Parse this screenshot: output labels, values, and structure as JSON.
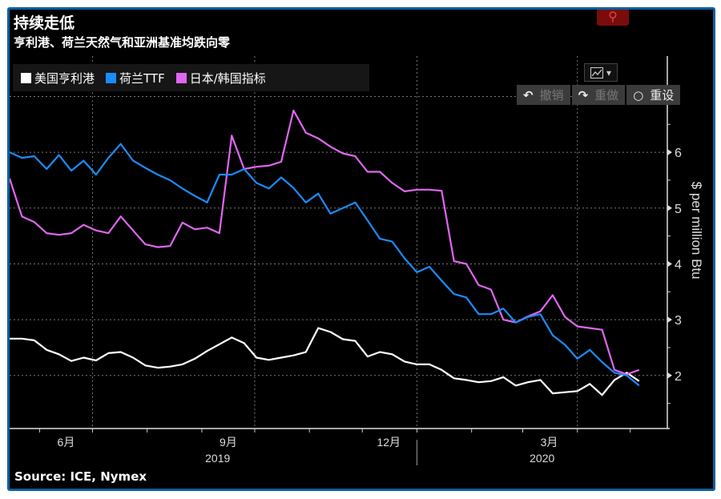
{
  "header": {
    "title": "持续走低",
    "subtitle": "亨利港、荷兰天然气和亚洲基准均跌向零"
  },
  "toolbar": {
    "undo_label": "撤销",
    "redo_label": "重做",
    "reset_label": "重设",
    "chart_type_icon": "line-chart-icon",
    "search_icon": "magnifier-icon"
  },
  "footer": {
    "source": "Source: ICE, Nymex"
  },
  "chart_data": {
    "type": "line",
    "title": "持续走低",
    "subtitle": "亨利港、荷兰天然气和亚洲基准均跌向零",
    "ylabel": "$ per million Btu",
    "xlabel": "",
    "ylim": [
      1.05,
      7.15
    ],
    "xlim": [
      "2019-05-15",
      "2020-05-22"
    ],
    "grid": true,
    "legend_position": "top-left",
    "y_axis_side": "right",
    "yticks": [
      "2",
      "3",
      "4",
      "5",
      "6"
    ],
    "ytick_values": [
      2,
      3,
      4,
      5,
      6
    ],
    "xtick_labels": [
      {
        "label": "6月",
        "date": "2019-06-16"
      },
      {
        "label": "9月",
        "date": "2019-09-16"
      },
      {
        "label": "12月",
        "date": "2019-12-16"
      },
      {
        "label": "3月",
        "date": "2020-03-16"
      }
    ],
    "year_labels": [
      {
        "label": "2019",
        "date": "2019-09-10"
      },
      {
        "label": "2020",
        "date": "2020-03-12"
      }
    ],
    "x": [
      "2019-05-15",
      "2019-05-22",
      "2019-05-29",
      "2019-06-05",
      "2019-06-12",
      "2019-06-19",
      "2019-06-26",
      "2019-07-03",
      "2019-07-10",
      "2019-07-17",
      "2019-07-24",
      "2019-07-31",
      "2019-08-07",
      "2019-08-14",
      "2019-08-21",
      "2019-08-28",
      "2019-09-04",
      "2019-09-11",
      "2019-09-18",
      "2019-09-25",
      "2019-10-02",
      "2019-10-09",
      "2019-10-16",
      "2019-10-23",
      "2019-10-30",
      "2019-11-06",
      "2019-11-13",
      "2019-11-20",
      "2019-11-27",
      "2019-12-04",
      "2019-12-11",
      "2019-12-18",
      "2019-12-25",
      "2020-01-01",
      "2020-01-08",
      "2020-01-15",
      "2020-01-22",
      "2020-01-29",
      "2020-02-05",
      "2020-02-12",
      "2020-02-19",
      "2020-02-26",
      "2020-03-04",
      "2020-03-11",
      "2020-03-18",
      "2020-03-25",
      "2020-04-01",
      "2020-04-08",
      "2020-04-15",
      "2020-04-22",
      "2020-04-29",
      "2020-05-06"
    ],
    "series": [
      {
        "name": "美国亨利港",
        "color": "#ffffff",
        "values": [
          2.66,
          2.66,
          2.63,
          2.46,
          2.38,
          2.26,
          2.32,
          2.27,
          2.4,
          2.42,
          2.32,
          2.18,
          2.14,
          2.16,
          2.2,
          2.3,
          2.44,
          2.56,
          2.68,
          2.58,
          2.32,
          2.28,
          2.32,
          2.36,
          2.42,
          2.85,
          2.78,
          2.65,
          2.62,
          2.34,
          2.42,
          2.38,
          2.25,
          2.2,
          2.2,
          2.1,
          1.95,
          1.92,
          1.88,
          1.9,
          1.97,
          1.82,
          1.88,
          1.92,
          1.68,
          1.7,
          1.72,
          1.85,
          1.65,
          1.92,
          2.05,
          1.9
        ]
      },
      {
        "name": "荷兰TTF",
        "color": "#1a8cff",
        "values": [
          6.0,
          5.9,
          5.93,
          5.7,
          5.95,
          5.67,
          5.85,
          5.6,
          5.9,
          6.15,
          5.85,
          5.72,
          5.6,
          5.5,
          5.35,
          5.22,
          5.1,
          5.6,
          5.6,
          5.7,
          5.45,
          5.35,
          5.55,
          5.36,
          5.1,
          5.26,
          4.9,
          5.0,
          5.1,
          4.78,
          4.45,
          4.4,
          4.1,
          3.85,
          3.95,
          3.7,
          3.46,
          3.4,
          3.1,
          3.1,
          3.2,
          2.95,
          3.05,
          3.1,
          2.72,
          2.55,
          2.3,
          2.46,
          2.24,
          2.05,
          2.0,
          1.82
        ]
      },
      {
        "name": "日本/韩国指标",
        "color": "#e066f0",
        "values": [
          5.53,
          4.85,
          4.75,
          4.55,
          4.52,
          4.55,
          4.7,
          4.6,
          4.55,
          4.85,
          4.6,
          4.35,
          4.3,
          4.32,
          4.74,
          4.62,
          4.65,
          4.55,
          6.3,
          5.7,
          5.74,
          5.76,
          5.83,
          6.75,
          6.35,
          6.25,
          6.1,
          5.98,
          5.93,
          5.65,
          5.65,
          5.45,
          5.3,
          5.33,
          5.33,
          5.31,
          4.05,
          4.0,
          3.62,
          3.54,
          3.0,
          2.95,
          3.06,
          3.15,
          3.44,
          3.05,
          2.88,
          2.85,
          2.82,
          2.1,
          2.02,
          2.1
        ]
      }
    ]
  }
}
